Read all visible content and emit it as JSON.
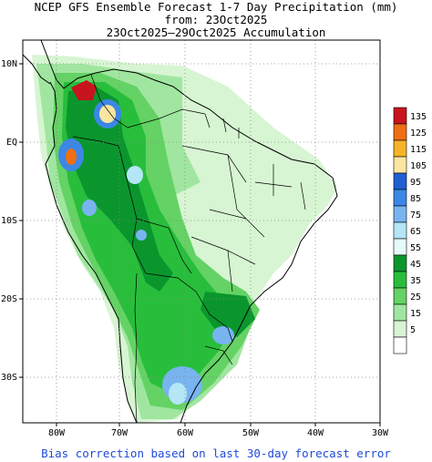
{
  "title": {
    "line1": "NCEP GFS Ensemble Forecast 1-7 Day Precipitation (mm)",
    "line2": "from: 23Oct2025",
    "line3": "23Oct2025–29Oct2025 Accumulation"
  },
  "axes": {
    "lon_labels": [
      "80W",
      "70W",
      "60W",
      "50W",
      "40W",
      "30W"
    ],
    "lat_labels": [
      "10N",
      "EQ",
      "10S",
      "20S",
      "30S"
    ]
  },
  "legend": {
    "entries": [
      {
        "label": "135",
        "color": "#c8141e"
      },
      {
        "label": "125",
        "color": "#f06e14"
      },
      {
        "label": "115",
        "color": "#f5b428"
      },
      {
        "label": "105",
        "color": "#fae6a0"
      },
      {
        "label": "95",
        "color": "#1e5fd2"
      },
      {
        "label": "85",
        "color": "#3c87e6"
      },
      {
        "label": "75",
        "color": "#78b4f0"
      },
      {
        "label": "65",
        "color": "#b4e6f5"
      },
      {
        "label": "55",
        "color": "#e6fafa"
      },
      {
        "label": "45",
        "color": "#0a962d"
      },
      {
        "label": "35",
        "color": "#28be3c"
      },
      {
        "label": "25",
        "color": "#64d264"
      },
      {
        "label": "15",
        "color": "#a0e6a0"
      },
      {
        "label": "5",
        "color": "#d7f5d2"
      },
      {
        "label": "",
        "color": "#ffffff"
      }
    ]
  },
  "footer": "Bias correction based on last 30-day forecast error"
}
